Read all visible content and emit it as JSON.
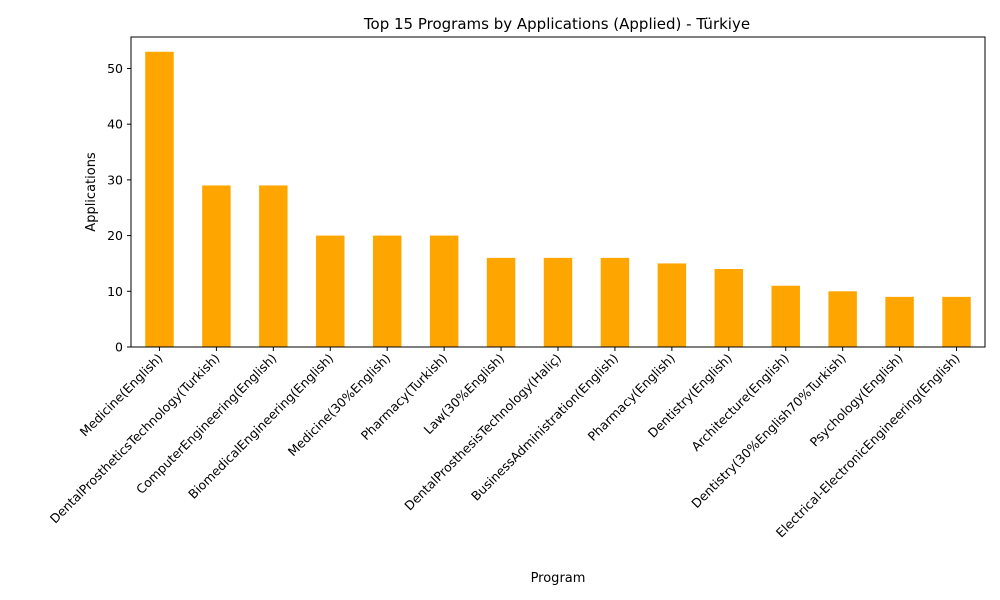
{
  "chart_data": {
    "type": "bar",
    "title": "Top 15 Programs by Applications (Applied) - Türkiye",
    "xlabel": "Program",
    "ylabel": "Applications",
    "categories": [
      "Medicine(English)",
      "DentalProstheticsTechnology(Turkish)",
      "ComputerEngineering(English)",
      "BiomedicalEngineering(English)",
      "Medicine(30%English)",
      "Pharmacy(Turkish)",
      "Law(30%English)",
      "DentalProsthesisTechnology(Haliç)",
      "BusinessAdministration(English)",
      "Pharmacy(English)",
      "Dentistry(English)",
      "Architecture(English)",
      "Dentistry(30%English70%Turkish)",
      "Psychology(English)",
      "Electrical-ElectronicEngineering(English)"
    ],
    "values": [
      53,
      29,
      29,
      20,
      20,
      20,
      16,
      16,
      16,
      15,
      14,
      11,
      10,
      9,
      9
    ],
    "ylim": [
      0,
      55.65
    ],
    "yticks": [
      0,
      10,
      20,
      30,
      40,
      50
    ],
    "bar_color": "#ffa500",
    "grid": false,
    "legend": "none"
  }
}
